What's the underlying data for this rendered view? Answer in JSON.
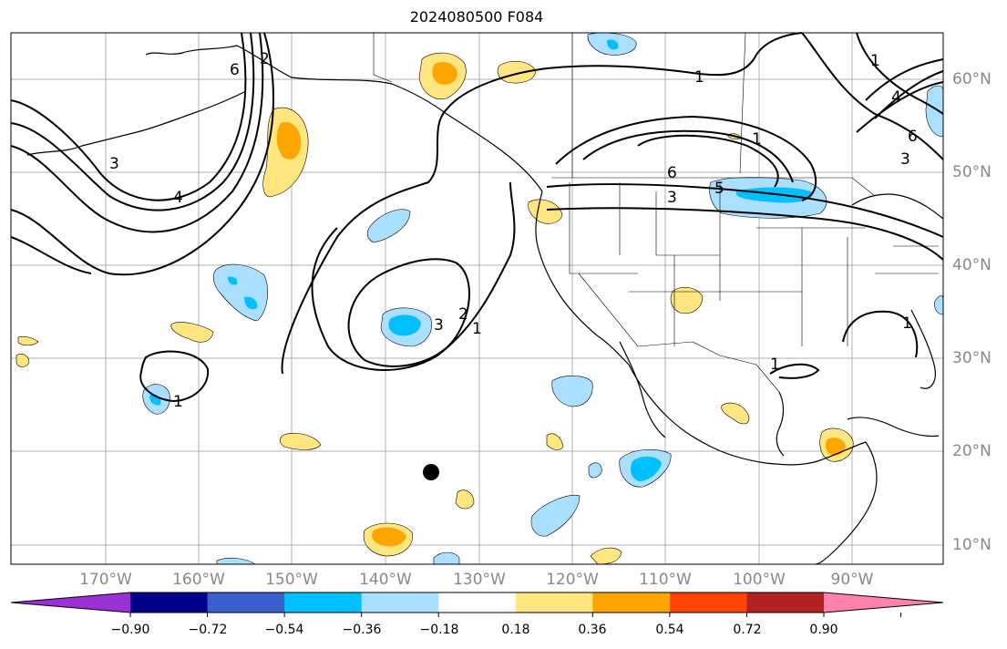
{
  "title": "2024080500 F084",
  "lat_labels": [
    "60°N",
    "50°N",
    "40°N",
    "30°N",
    "20°N",
    "10°N"
  ],
  "lon_labels": [
    "170°W",
    "160°W",
    "150°W",
    "140°W",
    "130°W",
    "120°W",
    "110°W",
    "100°W",
    "90°W"
  ],
  "colorbar": {
    "tick_labels": [
      "−0.90",
      "−0.72",
      "−0.54",
      "−0.36",
      "−0.18",
      "0.18",
      "0.36",
      "0.54",
      "0.72",
      "0.90"
    ],
    "colors": [
      "#9b30d4",
      "#00008b",
      "#3a5fcd",
      "#00bfff",
      "#aadfff",
      "#ffffff",
      "#ffe680",
      "#ffa500",
      "#ff4500",
      "#b22222",
      "#ff82ab"
    ]
  },
  "contour_labels": [
    "1",
    "2",
    "3",
    "4",
    "5",
    "6"
  ],
  "legend_colors": {
    "pos_low": "#ffe680",
    "pos_mid": "#ffa500",
    "neg_low": "#aadfff",
    "neg_mid": "#00bfff"
  }
}
